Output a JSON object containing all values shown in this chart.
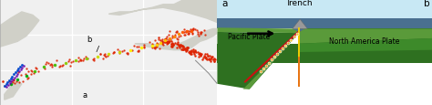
{
  "fig_width": 4.74,
  "fig_height": 1.16,
  "dpi": 100,
  "left_panel": {
    "bg_color": "#e8e8e8",
    "grid_color": "#ffffff",
    "label_a": "a",
    "label_b": "b"
  },
  "right_panel": {
    "bg_color": "#ffffff",
    "label_a": "a",
    "label_b": "b",
    "trench_label": "Trench",
    "pacific_label": "Pacific Plate",
    "namerica_label": "North America Plate",
    "sky_color": "#c8e8f4",
    "water_dark_color": "#4a7aaa",
    "plate_light_green": "#5a9a3a",
    "plate_dark_green": "#2e7020",
    "plate_mid_green": "#3d8a2a",
    "benioff_color1": "#f0c030",
    "benioff_color2": "#e8a020",
    "red_line_color": "#cc1010",
    "orange_line_color": "#e87010",
    "volcano_color": "#888888",
    "arrow_color": "#111111"
  }
}
